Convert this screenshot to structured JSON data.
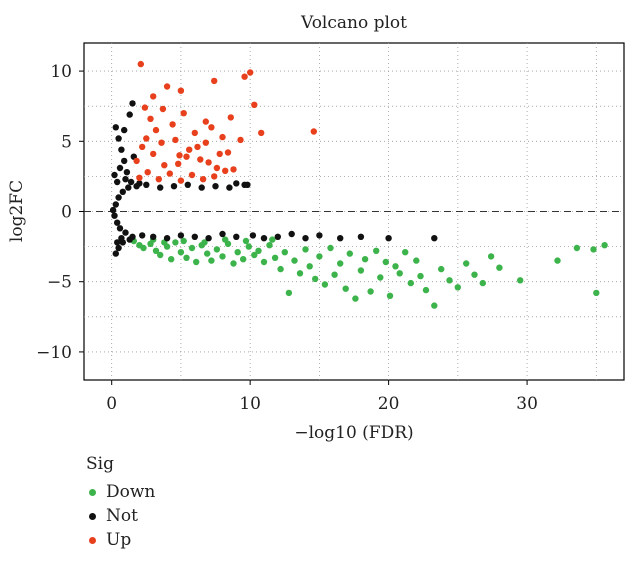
{
  "chart_data": {
    "type": "scatter",
    "title": "Volcano plot",
    "xlabel": "−log10 (FDR)",
    "ylabel": "log2FC",
    "xlim": [
      -2,
      37
    ],
    "ylim": [
      -12,
      12
    ],
    "x_ticks": [
      0,
      10,
      20,
      30
    ],
    "y_ticks": [
      -10,
      -5,
      0,
      5,
      10
    ],
    "x_tick_labels": [
      "0",
      "10",
      "20",
      "30"
    ],
    "y_tick_labels": [
      "−10",
      "−5",
      "0",
      "5",
      "10"
    ],
    "grid": true,
    "reference_line": {
      "y": 0,
      "style": "dashed"
    },
    "legend": {
      "title": "Sig",
      "placement": "bottom-left",
      "entries": [
        {
          "name": "Down",
          "color": "#3cb44b"
        },
        {
          "name": "Not",
          "color": "#111111"
        },
        {
          "name": "Up",
          "color": "#e8401c"
        }
      ]
    },
    "series": [
      {
        "name": "Down",
        "color": "#3cb44b",
        "points": [
          [
            1.6,
            -2.1
          ],
          [
            2.0,
            -2.4
          ],
          [
            2.3,
            -2.6
          ],
          [
            2.8,
            -2.3
          ],
          [
            3.2,
            -2.8
          ],
          [
            3.5,
            -3.1
          ],
          [
            4.0,
            -2.5
          ],
          [
            4.3,
            -3.4
          ],
          [
            4.6,
            -2.2
          ],
          [
            5.0,
            -2.9
          ],
          [
            5.4,
            -3.3
          ],
          [
            5.8,
            -2.6
          ],
          [
            6.1,
            -3.6
          ],
          [
            6.5,
            -2.4
          ],
          [
            6.9,
            -3.0
          ],
          [
            7.2,
            -3.5
          ],
          [
            7.6,
            -2.7
          ],
          [
            8.0,
            -3.2
          ],
          [
            8.4,
            -2.3
          ],
          [
            8.8,
            -3.7
          ],
          [
            9.1,
            -2.9
          ],
          [
            9.5,
            -3.4
          ],
          [
            9.9,
            -2.5
          ],
          [
            10.3,
            -3.1
          ],
          [
            10.6,
            -2.8
          ],
          [
            11.0,
            -3.6
          ],
          [
            11.4,
            -2.4
          ],
          [
            11.8,
            -3.3
          ],
          [
            12.2,
            -4.1
          ],
          [
            12.5,
            -2.9
          ],
          [
            12.8,
            -5.8
          ],
          [
            13.2,
            -3.5
          ],
          [
            13.6,
            -4.4
          ],
          [
            14.0,
            -2.7
          ],
          [
            14.3,
            -3.9
          ],
          [
            14.7,
            -4.8
          ],
          [
            15.0,
            -3.2
          ],
          [
            15.4,
            -5.2
          ],
          [
            15.8,
            -2.6
          ],
          [
            16.1,
            -4.5
          ],
          [
            16.5,
            -3.7
          ],
          [
            16.9,
            -5.5
          ],
          [
            17.2,
            -3.0
          ],
          [
            17.6,
            -6.2
          ],
          [
            18.0,
            -4.2
          ],
          [
            18.3,
            -3.4
          ],
          [
            18.7,
            -5.7
          ],
          [
            19.1,
            -2.8
          ],
          [
            19.4,
            -4.7
          ],
          [
            19.8,
            -3.6
          ],
          [
            20.1,
            -6.0
          ],
          [
            20.5,
            -3.9
          ],
          [
            20.8,
            -4.4
          ],
          [
            21.2,
            -2.9
          ],
          [
            21.6,
            -5.1
          ],
          [
            22.0,
            -3.5
          ],
          [
            22.3,
            -4.6
          ],
          [
            22.7,
            -5.6
          ],
          [
            23.3,
            -6.7
          ],
          [
            23.8,
            -4.1
          ],
          [
            24.4,
            -4.9
          ],
          [
            25.0,
            -5.4
          ],
          [
            25.6,
            -3.7
          ],
          [
            26.2,
            -4.5
          ],
          [
            26.8,
            -5.1
          ],
          [
            27.4,
            -3.2
          ],
          [
            28.0,
            -4.0
          ],
          [
            29.5,
            -4.9
          ],
          [
            32.2,
            -3.5
          ],
          [
            33.6,
            -2.6
          ],
          [
            34.8,
            -2.7
          ],
          [
            35.0,
            -5.8
          ],
          [
            35.6,
            -2.4
          ],
          [
            3.0,
            -2.0
          ],
          [
            3.8,
            -2.2
          ],
          [
            5.2,
            -2.1
          ],
          [
            6.7,
            -2.2
          ],
          [
            8.2,
            -2.0
          ],
          [
            9.7,
            -2.1
          ],
          [
            11.6,
            -2.0
          ]
        ]
      },
      {
        "name": "Not",
        "color": "#111111",
        "points": [
          [
            0.1,
            0.1
          ],
          [
            0.2,
            -0.3
          ],
          [
            0.3,
            0.5
          ],
          [
            0.4,
            -0.8
          ],
          [
            0.5,
            1.0
          ],
          [
            0.6,
            -1.2
          ],
          [
            0.8,
            1.4
          ],
          [
            1.0,
            -1.5
          ],
          [
            1.2,
            1.7
          ],
          [
            1.5,
            -1.8
          ],
          [
            1.8,
            1.8
          ],
          [
            2.2,
            -1.7
          ],
          [
            2.5,
            1.9
          ],
          [
            3.0,
            -1.8
          ],
          [
            3.5,
            1.7
          ],
          [
            4.0,
            -1.9
          ],
          [
            4.5,
            1.8
          ],
          [
            5.0,
            -1.7
          ],
          [
            5.5,
            1.9
          ],
          [
            6.0,
            -1.8
          ],
          [
            6.5,
            1.7
          ],
          [
            7.0,
            -1.9
          ],
          [
            7.5,
            1.8
          ],
          [
            8.0,
            -1.6
          ],
          [
            8.5,
            1.7
          ],
          [
            9.0,
            -1.8
          ],
          [
            9.6,
            1.9
          ],
          [
            10.2,
            -1.7
          ],
          [
            11.0,
            -1.9
          ],
          [
            12.0,
            -1.8
          ],
          [
            13.0,
            -1.6
          ],
          [
            14.0,
            -1.9
          ],
          [
            15.0,
            -1.7
          ],
          [
            16.5,
            -1.9
          ],
          [
            18.0,
            -1.8
          ],
          [
            20.0,
            -1.9
          ],
          [
            23.3,
            -1.9
          ],
          [
            0.3,
            6.0
          ],
          [
            0.5,
            5.2
          ],
          [
            0.7,
            4.4
          ],
          [
            0.9,
            3.6
          ],
          [
            1.1,
            2.8
          ],
          [
            0.3,
            -3.0
          ],
          [
            0.5,
            -2.6
          ],
          [
            0.8,
            -2.2
          ],
          [
            1.3,
            -2.0
          ],
          [
            1.5,
            7.7
          ],
          [
            1.3,
            6.9
          ],
          [
            0.9,
            5.8
          ],
          [
            1.6,
            3.9
          ],
          [
            0.2,
            2.6
          ],
          [
            0.4,
            2.1
          ],
          [
            0.6,
            3.1
          ],
          [
            0.4,
            -2.2
          ],
          [
            0.7,
            -1.9
          ],
          [
            1.0,
            2.3
          ],
          [
            1.4,
            2.1
          ],
          [
            2.0,
            2.0
          ],
          [
            9.0,
            2.0
          ],
          [
            9.8,
            1.9
          ]
        ]
      },
      {
        "name": "Up",
        "color": "#e8401c",
        "points": [
          [
            2.1,
            10.5
          ],
          [
            2.4,
            7.4
          ],
          [
            2.8,
            6.6
          ],
          [
            3.2,
            5.8
          ],
          [
            3.6,
            4.9
          ],
          [
            4.0,
            8.9
          ],
          [
            4.4,
            6.2
          ],
          [
            4.8,
            3.4
          ],
          [
            5.2,
            7.0
          ],
          [
            5.6,
            4.4
          ],
          [
            6.0,
            5.6
          ],
          [
            6.4,
            3.7
          ],
          [
            6.8,
            4.9
          ],
          [
            7.2,
            6.0
          ],
          [
            7.6,
            3.1
          ],
          [
            8.0,
            5.3
          ],
          [
            8.4,
            4.2
          ],
          [
            8.8,
            3.0
          ],
          [
            9.3,
            5.1
          ],
          [
            9.6,
            9.6
          ],
          [
            10.0,
            9.9
          ],
          [
            10.3,
            7.6
          ],
          [
            10.8,
            5.6
          ],
          [
            14.6,
            5.7
          ],
          [
            2.0,
            2.4
          ],
          [
            2.6,
            2.8
          ],
          [
            3.4,
            2.3
          ],
          [
            4.2,
            2.7
          ],
          [
            5.0,
            2.2
          ],
          [
            5.8,
            2.6
          ],
          [
            6.6,
            2.3
          ],
          [
            7.4,
            2.5
          ],
          [
            8.2,
            2.9
          ],
          [
            1.8,
            3.6
          ],
          [
            2.2,
            4.6
          ],
          [
            3.0,
            4.1
          ],
          [
            3.8,
            3.3
          ],
          [
            4.6,
            5.1
          ],
          [
            5.4,
            3.9
          ],
          [
            6.2,
            4.6
          ],
          [
            7.0,
            3.5
          ],
          [
            7.8,
            4.1
          ],
          [
            8.6,
            6.7
          ],
          [
            3.0,
            8.2
          ],
          [
            5.0,
            8.6
          ],
          [
            7.4,
            9.3
          ],
          [
            2.5,
            5.2
          ],
          [
            3.7,
            7.3
          ],
          [
            6.8,
            6.4
          ],
          [
            4.9,
            4.0
          ]
        ]
      }
    ]
  }
}
